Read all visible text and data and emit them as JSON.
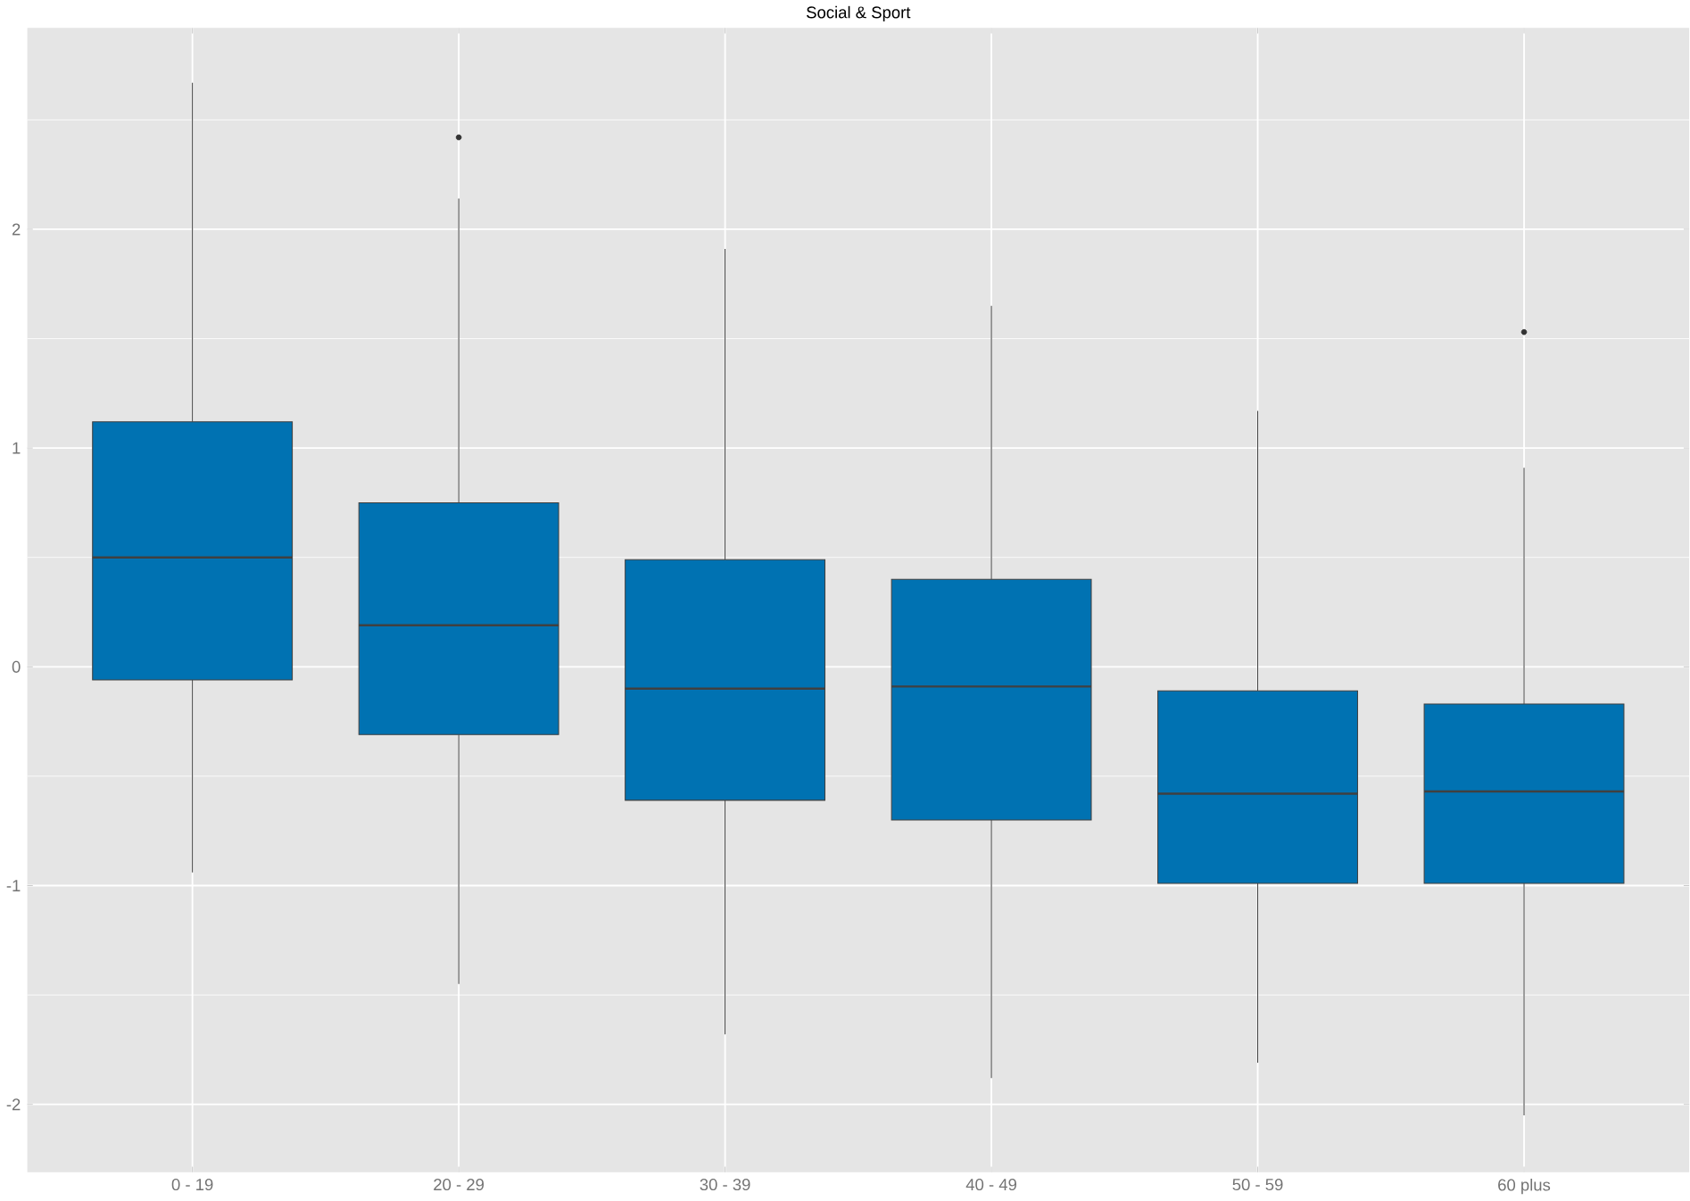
{
  "chart_data": {
    "type": "box",
    "title": "Social & Sport",
    "categories": [
      "0 - 19",
      "20 - 29",
      "30 - 39",
      "40 - 49",
      "50 - 59",
      "60 plus"
    ],
    "boxes": [
      {
        "low": -0.94,
        "q1": -0.06,
        "median": 0.5,
        "q3": 1.12,
        "high": 2.67
      },
      {
        "low": -1.45,
        "q1": -0.31,
        "median": 0.19,
        "q3": 0.75,
        "high": 2.14,
        "outliers": [
          2.42
        ]
      },
      {
        "low": -1.68,
        "q1": -0.61,
        "median": -0.1,
        "q3": 0.49,
        "high": 1.91
      },
      {
        "low": -1.88,
        "q1": -0.7,
        "median": -0.09,
        "q3": 0.4,
        "high": 1.65
      },
      {
        "low": -1.81,
        "q1": -0.99,
        "median": -0.58,
        "q3": -0.11,
        "high": 1.17
      },
      {
        "low": -2.05,
        "q1": -0.99,
        "median": -0.57,
        "q3": -0.17,
        "high": 0.91,
        "outliers": [
          1.53
        ]
      }
    ],
    "color": "#0072b2",
    "ylim": [
      -2.31,
      2.92
    ],
    "yticks": [
      -2,
      -1,
      0,
      1,
      2
    ],
    "grid": true
  }
}
